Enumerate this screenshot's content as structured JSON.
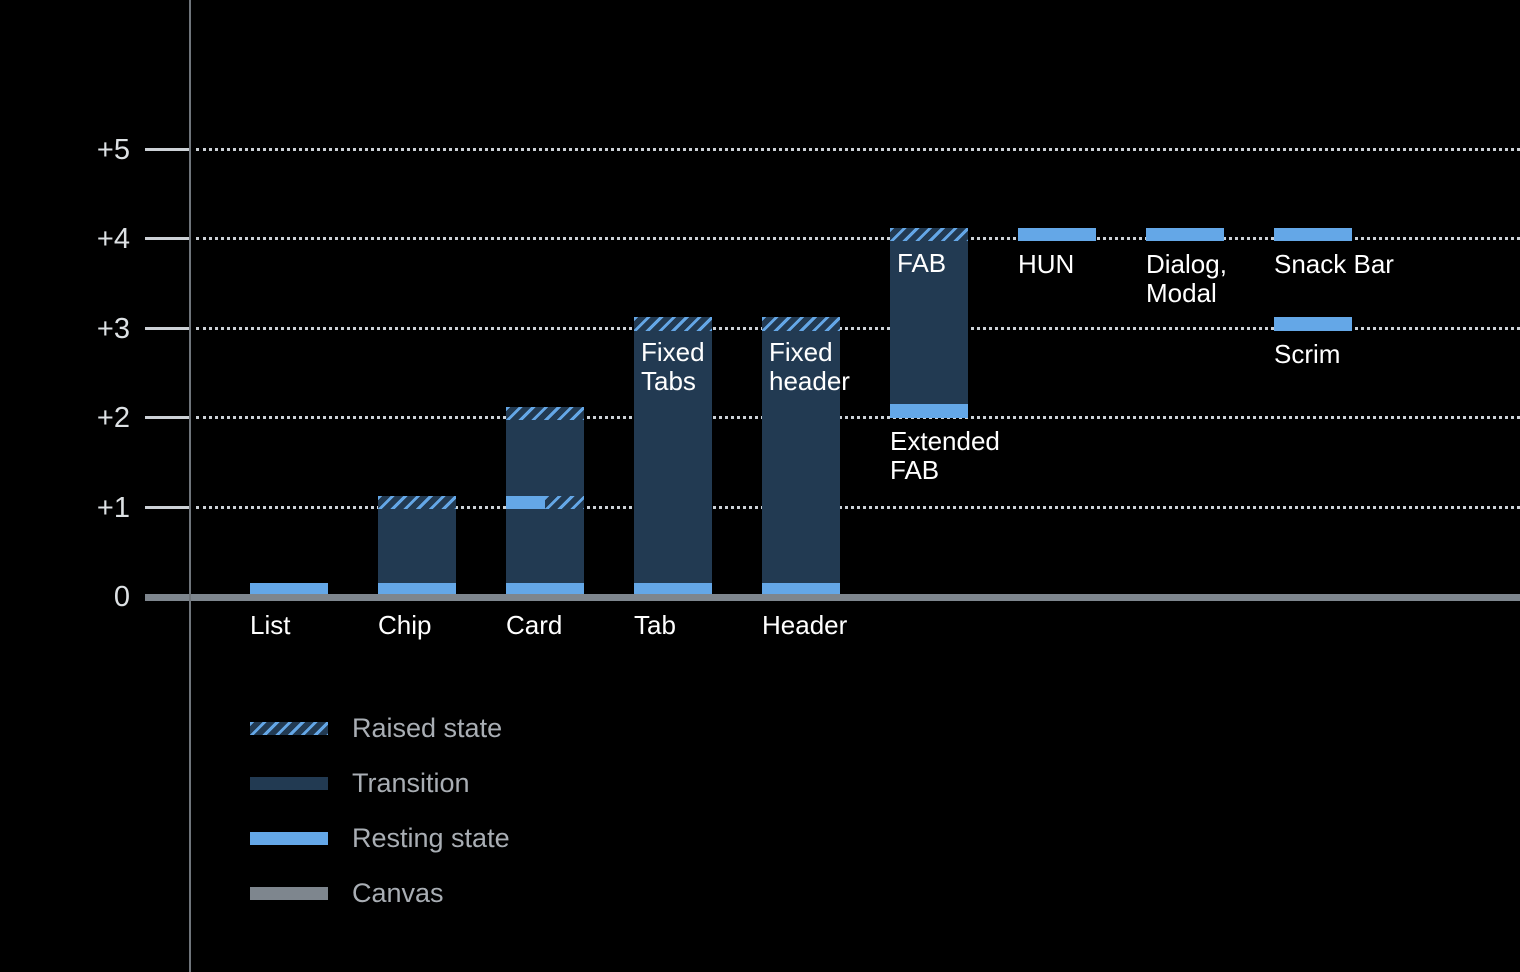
{
  "colors": {
    "background": "#000000",
    "resting": "#64a7e7",
    "transition": "#223a52",
    "canvas": "#7e868e",
    "grid": "#ccd1d6",
    "axis_line": "#6f757b",
    "axis_text": "#dde1e4",
    "bar_text": "#ffffff",
    "legend_text": "#a9aeb4"
  },
  "chart_data": {
    "type": "bar",
    "ylim": [
      0,
      5
    ],
    "grid": "dotted horizontal gridlines at each level",
    "legend_position": "bottom-left",
    "yticks": [
      {
        "label": "0",
        "level": 0
      },
      {
        "label": "+1",
        "level": 1
      },
      {
        "label": "+2",
        "level": 2
      },
      {
        "label": "+3",
        "level": 3
      },
      {
        "label": "+4",
        "level": 4
      },
      {
        "label": "+5",
        "level": 5
      }
    ],
    "bars": [
      {
        "name": "List",
        "col": 0,
        "segments": [
          {
            "kind": "resting",
            "from": 0,
            "to": 0.16
          }
        ],
        "labels": [
          {
            "text": "List",
            "placement": "below-axis",
            "level": 0
          }
        ]
      },
      {
        "name": "Chip",
        "col": 1,
        "segments": [
          {
            "kind": "resting",
            "from": 0,
            "to": 0.16
          },
          {
            "kind": "transition",
            "from": 0.16,
            "to": 0.98
          },
          {
            "kind": "raised",
            "from": 0.98,
            "to": 1.13
          }
        ],
        "labels": [
          {
            "text": "Chip",
            "placement": "below-axis",
            "level": 0
          }
        ]
      },
      {
        "name": "Card",
        "col": 2,
        "segments": [
          {
            "kind": "resting",
            "from": 0,
            "to": 0.16
          },
          {
            "kind": "transition",
            "from": 0.16,
            "to": 0.98
          },
          {
            "kind": "resting",
            "from": 0.98,
            "to": 1.13
          },
          {
            "kind": "raised",
            "from": 0.98,
            "to": 1.13,
            "half": true
          },
          {
            "kind": "transition",
            "from": 1.13,
            "to": 1.98
          },
          {
            "kind": "raised",
            "from": 1.98,
            "to": 2.13
          }
        ],
        "labels": [
          {
            "text": "Card",
            "placement": "below-axis",
            "level": 0
          }
        ]
      },
      {
        "name": "Tab",
        "col": 3,
        "segments": [
          {
            "kind": "resting",
            "from": 0,
            "to": 0.16
          },
          {
            "kind": "transition",
            "from": 0.16,
            "to": 2.98
          },
          {
            "kind": "raised",
            "from": 2.98,
            "to": 3.13
          }
        ],
        "labels": [
          {
            "text": "Tab",
            "placement": "below-axis",
            "level": 0
          },
          {
            "text": "Fixed\nTabs",
            "placement": "inside-top",
            "level": 3.13
          }
        ]
      },
      {
        "name": "Header",
        "col": 4,
        "segments": [
          {
            "kind": "resting",
            "from": 0,
            "to": 0.16
          },
          {
            "kind": "transition",
            "from": 0.16,
            "to": 2.98
          },
          {
            "kind": "raised",
            "from": 2.98,
            "to": 3.13
          }
        ],
        "labels": [
          {
            "text": "Header",
            "placement": "below-axis",
            "level": 0
          },
          {
            "text": "Fixed\nheader",
            "placement": "inside-top",
            "level": 3.13
          }
        ]
      },
      {
        "name": "Extended FAB",
        "col": 5,
        "segments": [
          {
            "kind": "resting",
            "from": 2,
            "to": 2.16
          },
          {
            "kind": "transition",
            "from": 2.16,
            "to": 3.98
          },
          {
            "kind": "raised",
            "from": 3.98,
            "to": 4.13
          }
        ],
        "labels": [
          {
            "text": "FAB",
            "placement": "inside-top",
            "level": 4.13
          },
          {
            "text": "Extended\nFAB",
            "placement": "below-bar",
            "level": 2
          }
        ]
      },
      {
        "name": "HUN",
        "col": 6,
        "segments": [
          {
            "kind": "resting",
            "from": 3.98,
            "to": 4.13
          }
        ],
        "labels": [
          {
            "text": "HUN",
            "placement": "below-bar",
            "level": 3.98
          }
        ]
      },
      {
        "name": "Dialog, Modal",
        "col": 7,
        "segments": [
          {
            "kind": "resting",
            "from": 3.98,
            "to": 4.13
          }
        ],
        "labels": [
          {
            "text": "Dialog,\nModal",
            "placement": "below-bar",
            "level": 3.98
          }
        ]
      },
      {
        "name": "Snack Bar / Scrim",
        "col": 8,
        "segments": [
          {
            "kind": "resting",
            "from": 3.98,
            "to": 4.13
          },
          {
            "kind": "resting",
            "from": 2.98,
            "to": 3.13
          }
        ],
        "labels": [
          {
            "text": "Snack Bar",
            "placement": "below-bar",
            "level": 3.98
          },
          {
            "text": "Scrim",
            "placement": "below-bar",
            "level": 2.98
          }
        ]
      }
    ],
    "legend": {
      "items": [
        {
          "kind": "raised",
          "label": "Raised state"
        },
        {
          "kind": "transition",
          "label": "Transition"
        },
        {
          "kind": "resting",
          "label": "Resting state"
        },
        {
          "kind": "canvas",
          "label": "Canvas"
        }
      ]
    }
  }
}
